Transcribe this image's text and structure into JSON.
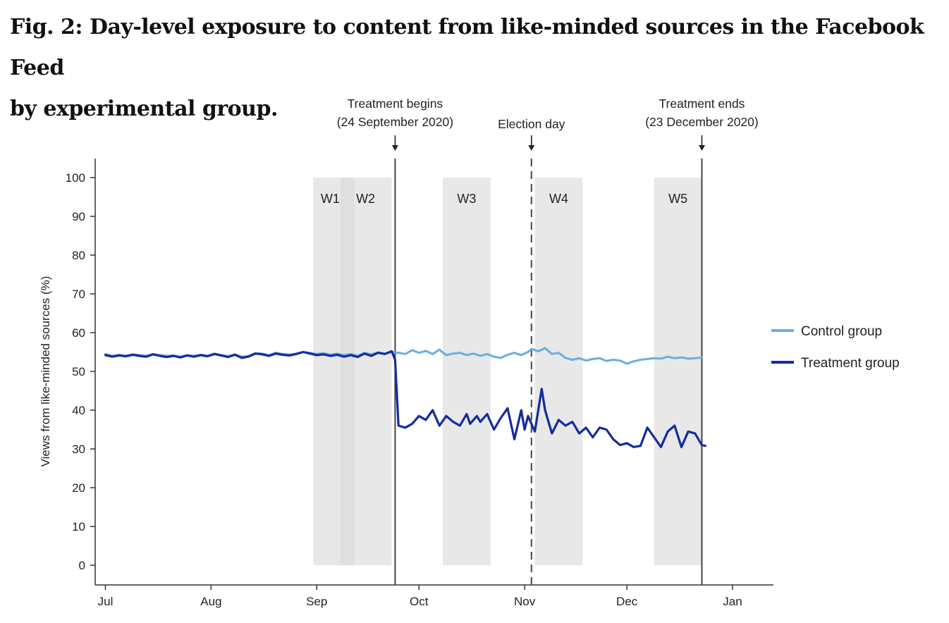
{
  "figure": {
    "title_line1": "Fig. 2: Day-level exposure to content from like-minded sources in the Facebook Feed",
    "title_line2": "by experimental group."
  },
  "chart_data": {
    "type": "line",
    "title": "Fig. 2: Day-level exposure to content from like-minded sources in the Facebook Feed by experimental group.",
    "ylabel": "Views from like-minded sources (%)",
    "xlabel": "",
    "ylim": [
      0,
      100
    ],
    "yticks": [
      0,
      10,
      20,
      30,
      40,
      50,
      60,
      70,
      80,
      90,
      100
    ],
    "xlim": [
      "2020-06-28",
      "2021-01-13"
    ],
    "xticks": [
      {
        "date": "2020-07-01",
        "label": "Jul"
      },
      {
        "date": "2020-08-01",
        "label": "Aug"
      },
      {
        "date": "2020-09-01",
        "label": "Sep"
      },
      {
        "date": "2020-10-01",
        "label": "Oct"
      },
      {
        "date": "2020-11-01",
        "label": "Nov"
      },
      {
        "date": "2020-12-01",
        "label": "Dec"
      },
      {
        "date": "2021-01-01",
        "label": "Jan"
      }
    ],
    "grid": false,
    "legend_position": "right",
    "windows": [
      {
        "label": "W1",
        "start": "2020-08-31",
        "end": "2020-09-12"
      },
      {
        "label": "W2",
        "start": "2020-09-08",
        "end": "2020-09-23"
      },
      {
        "label": "W3",
        "start": "2020-10-08",
        "end": "2020-10-22"
      },
      {
        "label": "W4",
        "start": "2020-11-04",
        "end": "2020-11-18"
      },
      {
        "label": "W5",
        "start": "2020-12-09",
        "end": "2020-12-23"
      }
    ],
    "events": [
      {
        "date": "2020-09-24",
        "label_line1": "Treatment begins",
        "label_line2": "(24 September 2020)",
        "style": "solid"
      },
      {
        "date": "2020-11-03",
        "label_line1": "Election day",
        "label_line2": "",
        "style": "dashed"
      },
      {
        "date": "2020-12-23",
        "label_line1": "Treatment ends",
        "label_line2": "(23 December 2020)",
        "style": "solid"
      }
    ],
    "series": [
      {
        "name": "Control group",
        "color": "#6aaee0",
        "points": [
          [
            "2020-07-01",
            54.5
          ],
          [
            "2020-07-03",
            54.0
          ],
          [
            "2020-07-05",
            54.3
          ],
          [
            "2020-07-07",
            54.0
          ],
          [
            "2020-07-09",
            54.4
          ],
          [
            "2020-07-11",
            54.2
          ],
          [
            "2020-07-13",
            54.0
          ],
          [
            "2020-07-15",
            54.5
          ],
          [
            "2020-07-17",
            54.2
          ],
          [
            "2020-07-19",
            54.0
          ],
          [
            "2020-07-21",
            54.1
          ],
          [
            "2020-07-23",
            53.8
          ],
          [
            "2020-07-25",
            54.2
          ],
          [
            "2020-07-27",
            54.0
          ],
          [
            "2020-07-29",
            54.3
          ],
          [
            "2020-07-31",
            54.0
          ],
          [
            "2020-08-02",
            54.6
          ],
          [
            "2020-08-04",
            54.2
          ],
          [
            "2020-08-06",
            53.9
          ],
          [
            "2020-08-08",
            54.4
          ],
          [
            "2020-08-10",
            53.8
          ],
          [
            "2020-08-12",
            54.0
          ],
          [
            "2020-08-14",
            54.7
          ],
          [
            "2020-08-16",
            54.6
          ],
          [
            "2020-08-18",
            54.2
          ],
          [
            "2020-08-20",
            54.8
          ],
          [
            "2020-08-22",
            54.5
          ],
          [
            "2020-08-24",
            54.3
          ],
          [
            "2020-08-26",
            54.6
          ],
          [
            "2020-08-28",
            55.0
          ],
          [
            "2020-08-30",
            54.8
          ],
          [
            "2020-09-01",
            54.5
          ],
          [
            "2020-09-03",
            54.7
          ],
          [
            "2020-09-05",
            54.3
          ],
          [
            "2020-09-07",
            54.6
          ],
          [
            "2020-09-09",
            54.2
          ],
          [
            "2020-09-11",
            54.5
          ],
          [
            "2020-09-13",
            54.0
          ],
          [
            "2020-09-15",
            54.8
          ],
          [
            "2020-09-17",
            54.4
          ],
          [
            "2020-09-19",
            54.9
          ],
          [
            "2020-09-21",
            54.6
          ],
          [
            "2020-09-23",
            55.0
          ],
          [
            "2020-09-25",
            54.8
          ],
          [
            "2020-09-27",
            54.5
          ],
          [
            "2020-09-29",
            55.5
          ],
          [
            "2020-10-01",
            54.8
          ],
          [
            "2020-10-03",
            55.3
          ],
          [
            "2020-10-05",
            54.5
          ],
          [
            "2020-10-07",
            55.6
          ],
          [
            "2020-10-09",
            54.2
          ],
          [
            "2020-10-11",
            54.6
          ],
          [
            "2020-10-13",
            54.8
          ],
          [
            "2020-10-15",
            54.2
          ],
          [
            "2020-10-17",
            54.6
          ],
          [
            "2020-10-19",
            54.0
          ],
          [
            "2020-10-21",
            54.5
          ],
          [
            "2020-10-23",
            53.8
          ],
          [
            "2020-10-25",
            53.5
          ],
          [
            "2020-10-27",
            54.3
          ],
          [
            "2020-10-29",
            54.8
          ],
          [
            "2020-10-31",
            54.2
          ],
          [
            "2020-11-02",
            55.0
          ],
          [
            "2020-11-03",
            55.8
          ],
          [
            "2020-11-05",
            55.2
          ],
          [
            "2020-11-07",
            56.0
          ],
          [
            "2020-11-09",
            54.5
          ],
          [
            "2020-11-11",
            54.8
          ],
          [
            "2020-11-13",
            53.5
          ],
          [
            "2020-11-15",
            53.0
          ],
          [
            "2020-11-17",
            53.4
          ],
          [
            "2020-11-19",
            52.8
          ],
          [
            "2020-11-21",
            53.2
          ],
          [
            "2020-11-23",
            53.4
          ],
          [
            "2020-11-25",
            52.7
          ],
          [
            "2020-11-27",
            53.0
          ],
          [
            "2020-11-29",
            52.8
          ],
          [
            "2020-12-01",
            52.0
          ],
          [
            "2020-12-03",
            52.6
          ],
          [
            "2020-12-05",
            53.0
          ],
          [
            "2020-12-07",
            53.2
          ],
          [
            "2020-12-09",
            53.4
          ],
          [
            "2020-12-11",
            53.3
          ],
          [
            "2020-12-13",
            53.8
          ],
          [
            "2020-12-15",
            53.4
          ],
          [
            "2020-12-17",
            53.6
          ],
          [
            "2020-12-19",
            53.3
          ],
          [
            "2020-12-21",
            53.4
          ],
          [
            "2020-12-23",
            53.6
          ]
        ]
      },
      {
        "name": "Treatment group",
        "color": "#142c9e",
        "points": [
          [
            "2020-07-01",
            54.2
          ],
          [
            "2020-07-03",
            53.8
          ],
          [
            "2020-07-05",
            54.1
          ],
          [
            "2020-07-07",
            53.9
          ],
          [
            "2020-07-09",
            54.3
          ],
          [
            "2020-07-11",
            54.0
          ],
          [
            "2020-07-13",
            53.8
          ],
          [
            "2020-07-15",
            54.4
          ],
          [
            "2020-07-17",
            54.0
          ],
          [
            "2020-07-19",
            53.7
          ],
          [
            "2020-07-21",
            54.0
          ],
          [
            "2020-07-23",
            53.6
          ],
          [
            "2020-07-25",
            54.1
          ],
          [
            "2020-07-27",
            53.8
          ],
          [
            "2020-07-29",
            54.2
          ],
          [
            "2020-07-31",
            53.9
          ],
          [
            "2020-08-02",
            54.5
          ],
          [
            "2020-08-04",
            54.1
          ],
          [
            "2020-08-06",
            53.7
          ],
          [
            "2020-08-08",
            54.3
          ],
          [
            "2020-08-10",
            53.5
          ],
          [
            "2020-08-12",
            53.8
          ],
          [
            "2020-08-14",
            54.6
          ],
          [
            "2020-08-16",
            54.4
          ],
          [
            "2020-08-18",
            54.0
          ],
          [
            "2020-08-20",
            54.6
          ],
          [
            "2020-08-22",
            54.3
          ],
          [
            "2020-08-24",
            54.1
          ],
          [
            "2020-08-26",
            54.5
          ],
          [
            "2020-08-28",
            55.0
          ],
          [
            "2020-08-30",
            54.6
          ],
          [
            "2020-09-01",
            54.2
          ],
          [
            "2020-09-03",
            54.4
          ],
          [
            "2020-09-05",
            54.0
          ],
          [
            "2020-09-07",
            54.3
          ],
          [
            "2020-09-09",
            53.8
          ],
          [
            "2020-09-11",
            54.2
          ],
          [
            "2020-09-13",
            53.7
          ],
          [
            "2020-09-15",
            54.6
          ],
          [
            "2020-09-17",
            54.0
          ],
          [
            "2020-09-19",
            54.8
          ],
          [
            "2020-09-21",
            54.5
          ],
          [
            "2020-09-23",
            55.2
          ],
          [
            "2020-09-24",
            53.0
          ],
          [
            "2020-09-25",
            36.0
          ],
          [
            "2020-09-27",
            35.5
          ],
          [
            "2020-09-29",
            36.5
          ],
          [
            "2020-10-01",
            38.5
          ],
          [
            "2020-10-03",
            37.5
          ],
          [
            "2020-10-05",
            40.0
          ],
          [
            "2020-10-07",
            36.0
          ],
          [
            "2020-10-09",
            38.5
          ],
          [
            "2020-10-11",
            37.0
          ],
          [
            "2020-10-13",
            36.0
          ],
          [
            "2020-10-15",
            39.0
          ],
          [
            "2020-10-16",
            36.5
          ],
          [
            "2020-10-18",
            38.5
          ],
          [
            "2020-10-19",
            37.0
          ],
          [
            "2020-10-21",
            39.0
          ],
          [
            "2020-10-23",
            35.0
          ],
          [
            "2020-10-25",
            38.0
          ],
          [
            "2020-10-27",
            40.5
          ],
          [
            "2020-10-29",
            32.5
          ],
          [
            "2020-10-31",
            40.0
          ],
          [
            "2020-11-01",
            35.0
          ],
          [
            "2020-11-02",
            38.5
          ],
          [
            "2020-11-04",
            34.5
          ],
          [
            "2020-11-06",
            45.5
          ],
          [
            "2020-11-07",
            40.0
          ],
          [
            "2020-11-09",
            34.0
          ],
          [
            "2020-11-11",
            37.5
          ],
          [
            "2020-11-13",
            36.0
          ],
          [
            "2020-11-15",
            37.0
          ],
          [
            "2020-11-17",
            34.0
          ],
          [
            "2020-11-19",
            35.5
          ],
          [
            "2020-11-21",
            33.0
          ],
          [
            "2020-11-23",
            35.5
          ],
          [
            "2020-11-25",
            35.0
          ],
          [
            "2020-11-27",
            32.5
          ],
          [
            "2020-11-29",
            31.0
          ],
          [
            "2020-12-01",
            31.5
          ],
          [
            "2020-12-03",
            30.5
          ],
          [
            "2020-12-05",
            30.8
          ],
          [
            "2020-12-07",
            35.5
          ],
          [
            "2020-12-09",
            33.0
          ],
          [
            "2020-12-11",
            30.5
          ],
          [
            "2020-12-13",
            34.5
          ],
          [
            "2020-12-15",
            36.0
          ],
          [
            "2020-12-17",
            30.5
          ],
          [
            "2020-12-19",
            34.5
          ],
          [
            "2020-12-21",
            34.0
          ],
          [
            "2020-12-23",
            31.0
          ],
          [
            "2020-12-24",
            30.8
          ]
        ]
      }
    ]
  }
}
